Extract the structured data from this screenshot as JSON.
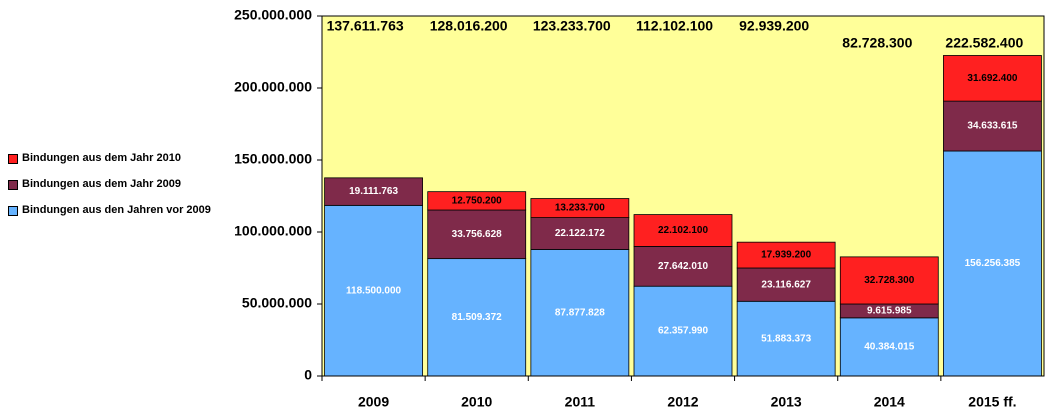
{
  "chart_data": {
    "type": "stacked_bar",
    "categories": [
      "2009",
      "2010",
      "2011",
      "2012",
      "2013",
      "2014",
      "2015 ff."
    ],
    "series": [
      {
        "name": "Bindungen aus den Jahren vor 2009",
        "color": "#66b3ff",
        "values": [
          118500000,
          81509372,
          87877828,
          62357990,
          51883373,
          40384015,
          156256385
        ],
        "value_labels": [
          "118.500.000",
          "81.509.372",
          "87.877.828",
          "62.357.990",
          "51.883.373",
          "40.384.015",
          "156.256.385"
        ]
      },
      {
        "name": "Bindungen aus dem Jahr 2009",
        "color": "#7f2a4a",
        "values": [
          19111763,
          33756628,
          22122172,
          27642010,
          23116627,
          9615985,
          34633615
        ],
        "value_labels": [
          "19.111.763",
          "33.756.628",
          "22.122.172",
          "27.642.010",
          "23.116.627",
          "9.615.985",
          "34.633.615"
        ]
      },
      {
        "name": "Bindungen aus dem Jahr 2010",
        "color": "#ff2020",
        "values": [
          null,
          12750200,
          13233700,
          22102100,
          17939200,
          32728300,
          31692400
        ],
        "value_labels": [
          null,
          "12.750.200",
          "13.233.700",
          "22.102.100",
          "17.939.200",
          "32.728.300",
          "31.692.400"
        ]
      }
    ],
    "totals": [
      137611763,
      128016200,
      123233700,
      112102100,
      92939200,
      82728300,
      222582400
    ],
    "total_labels": [
      "137.611.763",
      "128.016.200",
      "123.233.700",
      "112.102.100",
      "92.939.200",
      "82.728.300",
      "222.582.400"
    ],
    "ylim": [
      0,
      250000000
    ],
    "yticks": [
      0,
      {
        "value": 50000000,
        "label": "50.000.000"
      },
      {
        "value": 100000000,
        "label": "100.000.000"
      },
      {
        "value": 150000000,
        "label": "150.000.000"
      },
      {
        "value": 200000000,
        "label": "200.000.000"
      },
      {
        "value": 250000000,
        "label": "250.000.000"
      }
    ],
    "background": "#ffff99",
    "legend": "left"
  }
}
